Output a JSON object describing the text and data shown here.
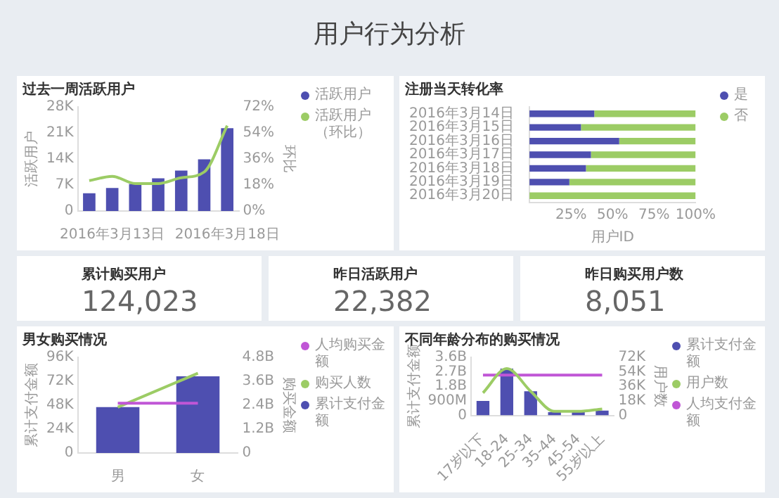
{
  "chart_data": [
    {
      "type": "other",
      "title": "用户行为分析"
    },
    {
      "type": "bar",
      "title": "过去一周活跃用户",
      "categories": [
        null,
        "2016年3月13日",
        null,
        null,
        null,
        null,
        "2016年3月18日"
      ],
      "ylabel": "活跃用户",
      "y2label": "环比",
      "legend": "top right",
      "marker": "none",
      "series": [
        {
          "name": "活跃用户",
          "color": "#4e4fb0",
          "values": [
            4800,
            6200,
            7300,
            8800,
            10900,
            13900,
            22300
          ]
        },
        {
          "name": "活跃用户（环比）",
          "type": "line",
          "axis": "y2",
          "color": "#9ccc65",
          "values": [
            21,
            24,
            19,
            19,
            23,
            27,
            59
          ]
        }
      ],
      "ylim": [
        0,
        28000
      ],
      "yticks": [
        {
          "value": 0,
          "label": "0"
        },
        {
          "value": 7000,
          "label": "7K"
        },
        {
          "value": 14000,
          "label": "14K"
        },
        {
          "value": 21000,
          "label": "21K"
        },
        {
          "value": 28000,
          "label": "28K"
        }
      ],
      "y2lim": [
        0,
        72
      ],
      "y2ticks": [
        {
          "value": 0,
          "label": "0%"
        },
        {
          "value": 18,
          "label": "18%"
        },
        {
          "value": 36,
          "label": "36%"
        },
        {
          "value": 54,
          "label": "54%"
        },
        {
          "value": 72,
          "label": "72%"
        }
      ]
    },
    {
      "type": "bar",
      "title": "注册当天转化率",
      "orientation": "horizontal",
      "stacked": true,
      "categories": [
        "2016年3月14日",
        "2016年3月15日",
        "2016年3月16日",
        "2016年3月17日",
        "2016年3月18日",
        "2016年3月19日",
        "2016年3月20日"
      ],
      "xlabel": "用户ID",
      "legend": "top right",
      "series": [
        {
          "name": "是",
          "color": "#4e4fb0",
          "values": [
            39,
            31,
            54,
            37,
            34,
            24,
            0
          ]
        },
        {
          "name": "否",
          "color": "#9ccc65",
          "values": [
            61,
            69,
            46,
            63,
            66,
            76,
            100
          ]
        }
      ],
      "xlim": [
        0,
        100
      ],
      "xticks": [
        {
          "value": 25,
          "label": "25%"
        },
        {
          "value": 50,
          "label": "50%"
        },
        {
          "value": 75,
          "label": "75%"
        },
        {
          "value": 100,
          "label": "100%"
        }
      ]
    },
    {
      "type": "other",
      "title": "累计购买用户",
      "annotations": [
        "124,023"
      ]
    },
    {
      "type": "other",
      "title": "昨日活跃用户",
      "annotations": [
        "22,382"
      ]
    },
    {
      "type": "other",
      "title": "昨日购买用户数",
      "annotations": [
        "8,051"
      ]
    },
    {
      "type": "bar",
      "title": "男女购买情况",
      "categories": [
        "男",
        "女"
      ],
      "ylabel": "累计支付金额",
      "y2label": "购买金额",
      "legend": "top right",
      "marker": "none",
      "series": [
        {
          "name": "人均购买金额",
          "type": "line",
          "axis": "y2",
          "color": "#c056d6",
          "values": [
            2500000000,
            2500000000
          ]
        },
        {
          "name": "购买人数",
          "type": "line",
          "axis": "y2",
          "color": "#9ccc65",
          "values": [
            2300000000,
            4000000000
          ]
        },
        {
          "name": "累计支付金额",
          "color": "#4e4fb0",
          "values": [
            46000,
            77000
          ]
        }
      ],
      "ylim": [
        0,
        96000
      ],
      "yticks": [
        {
          "value": 0,
          "label": "0"
        },
        {
          "value": 24000,
          "label": "24K"
        },
        {
          "value": 48000,
          "label": "48K"
        },
        {
          "value": 72000,
          "label": "72K"
        },
        {
          "value": 96000,
          "label": "96K"
        }
      ],
      "y2lim": [
        0,
        4800000000
      ],
      "y2ticks": [
        {
          "value": 0,
          "label": "0"
        },
        {
          "value": 1200000000,
          "label": "1.2B"
        },
        {
          "value": 2400000000,
          "label": "2.4B"
        },
        {
          "value": 3600000000,
          "label": "3.6B"
        },
        {
          "value": 4800000000,
          "label": "4.8B"
        }
      ]
    },
    {
      "type": "bar",
      "title": "不同年龄分布的购买情况",
      "categories": [
        "17岁以下",
        "18-24",
        "25-34",
        "35-44",
        "45-54",
        "55岁以上"
      ],
      "ylabel": "累计支付金额",
      "y2label": "用户数",
      "legend": "top right",
      "marker": "none",
      "series": [
        {
          "name": "累计支付金额",
          "color": "#4e4fb0",
          "values": [
            900000000,
            2900000000,
            1500000000,
            200000000,
            200000000,
            300000000
          ]
        },
        {
          "name": "用户数",
          "type": "line",
          "axis": "y2",
          "color": "#9ccc65",
          "values": [
            28000,
            58000,
            30000,
            5000,
            5000,
            8000
          ]
        },
        {
          "name": "人均支付金额",
          "type": "line",
          "axis": "y2",
          "color": "#c056d6",
          "values": [
            50000,
            50000,
            50000,
            50000,
            50000,
            50000
          ]
        }
      ],
      "ylim": [
        0,
        3600000000
      ],
      "yticks": [
        {
          "value": 0,
          "label": "0"
        },
        {
          "value": 900000000,
          "label": "900M"
        },
        {
          "value": 1800000000,
          "label": "1.8B"
        },
        {
          "value": 2700000000,
          "label": "2.7B"
        },
        {
          "value": 3600000000,
          "label": "3.6B"
        }
      ],
      "y2lim": [
        0,
        72000
      ],
      "y2ticks": [
        {
          "value": 0,
          "label": "0"
        },
        {
          "value": 18000,
          "label": "18K"
        },
        {
          "value": 36000,
          "label": "36K"
        },
        {
          "value": 54000,
          "label": "54K"
        },
        {
          "value": 72000,
          "label": "72K"
        }
      ]
    }
  ]
}
